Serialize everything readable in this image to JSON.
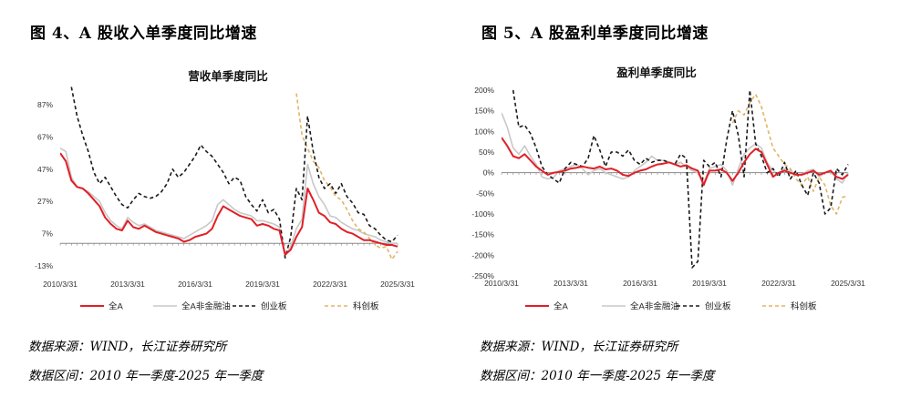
{
  "left_panel": {
    "figure_title": "图 4、A 股收入单季度同比增速",
    "source_note": "数据来源：WIND，长江证券研究所",
    "range_note": "数据区间：2010 年一季度-2025 年一季度"
  },
  "right_panel": {
    "figure_title": "图 5、A 股盈利单季度同比增速",
    "source_note": "数据来源：WIND，长江证券研究所",
    "range_note": "数据区间：2010 年一季度-2025 年一季度"
  },
  "chart_data": [
    {
      "type": "line",
      "title": "营收单季度同比",
      "x_start": "2010/3/31",
      "x_end": "2025/3/31",
      "frequency": "quarterly",
      "x_tick_labels": [
        "2010/3/31",
        "2013/3/31",
        "2016/3/31",
        "2019/3/31",
        "2022/3/31",
        "2025/3/31"
      ],
      "y_tick_labels": [
        "-13%",
        "7%",
        "27%",
        "47%",
        "67%",
        "87%"
      ],
      "y_ticks": [
        -13,
        7,
        27,
        47,
        67,
        87
      ],
      "ylim": [
        -13,
        100
      ],
      "grid": false,
      "legend_position": "bottom",
      "series": [
        {
          "name": "全A",
          "color": "#e11f26",
          "dash": "solid",
          "x": [
            2010.0,
            2010.25,
            2010.5,
            2010.75,
            2011.0,
            2011.25,
            2011.5,
            2011.75,
            2012.0,
            2012.25,
            2012.5,
            2012.75,
            2013.0,
            2013.25,
            2013.5,
            2013.75,
            2014.0,
            2014.25,
            2014.5,
            2014.75,
            2015.0,
            2015.25,
            2015.5,
            2015.75,
            2016.0,
            2016.25,
            2016.5,
            2016.75,
            2017.0,
            2017.25,
            2017.5,
            2017.75,
            2018.0,
            2018.25,
            2018.5,
            2018.75,
            2019.0,
            2019.25,
            2019.5,
            2019.75,
            2020.0,
            2020.25,
            2020.5,
            2020.75,
            2021.0,
            2021.25,
            2021.5,
            2021.75,
            2022.0,
            2022.25,
            2022.5,
            2022.75,
            2023.0,
            2023.25,
            2023.5,
            2023.75,
            2024.0,
            2024.25,
            2024.5,
            2024.75,
            2025.0
          ],
          "y": [
            57,
            52,
            40,
            36,
            35,
            32,
            28,
            24,
            17,
            13,
            10,
            9,
            15,
            11,
            10,
            12,
            10,
            8,
            7,
            6,
            5,
            4,
            2,
            3,
            5,
            6,
            7,
            10,
            18,
            24,
            22,
            20,
            18,
            17,
            16,
            12,
            13,
            12,
            10,
            9,
            -6,
            -3,
            5,
            11,
            35,
            28,
            20,
            18,
            14,
            13,
            10,
            8,
            7,
            5,
            3,
            3,
            2,
            1,
            0,
            0,
            -1
          ]
        },
        {
          "name": "全A非金融油",
          "color": "#c8c8c8",
          "dash": "solid",
          "x": [
            2010.0,
            2010.25,
            2010.5,
            2010.75,
            2011.0,
            2011.25,
            2011.5,
            2011.75,
            2012.0,
            2012.25,
            2012.5,
            2012.75,
            2013.0,
            2013.25,
            2013.5,
            2013.75,
            2014.0,
            2014.25,
            2014.5,
            2014.75,
            2015.0,
            2015.25,
            2015.5,
            2015.75,
            2016.0,
            2016.25,
            2016.5,
            2016.75,
            2017.0,
            2017.25,
            2017.5,
            2017.75,
            2018.0,
            2018.25,
            2018.5,
            2018.75,
            2019.0,
            2019.25,
            2019.5,
            2019.75,
            2020.0,
            2020.25,
            2020.5,
            2020.75,
            2021.0,
            2021.25,
            2021.5,
            2021.75,
            2022.0,
            2022.25,
            2022.5,
            2022.75,
            2023.0,
            2023.25,
            2023.5,
            2023.75,
            2024.0,
            2024.25,
            2024.5,
            2024.75,
            2025.0
          ],
          "y": [
            60,
            58,
            42,
            36,
            35,
            33,
            30,
            27,
            20,
            15,
            12,
            10,
            17,
            14,
            12,
            13,
            11,
            9,
            8,
            7,
            6,
            5,
            4,
            6,
            8,
            10,
            12,
            15,
            25,
            28,
            25,
            22,
            20,
            19,
            18,
            15,
            15,
            14,
            13,
            11,
            -7,
            -1,
            10,
            16,
            50,
            38,
            30,
            25,
            18,
            17,
            14,
            12,
            10,
            9,
            7,
            6,
            5,
            3,
            2,
            1,
            1
          ]
        },
        {
          "name": "创业板",
          "color": "#1a1a1a",
          "dash": "dashed",
          "x": [
            2010.5,
            2010.75,
            2011.0,
            2011.25,
            2011.5,
            2011.75,
            2012.0,
            2012.25,
            2012.5,
            2012.75,
            2013.0,
            2013.25,
            2013.5,
            2013.75,
            2014.0,
            2014.25,
            2014.5,
            2014.75,
            2015.0,
            2015.25,
            2015.5,
            2015.75,
            2016.0,
            2016.25,
            2016.5,
            2016.75,
            2017.0,
            2017.25,
            2017.5,
            2017.75,
            2018.0,
            2018.25,
            2018.5,
            2018.75,
            2019.0,
            2019.25,
            2019.5,
            2019.75,
            2020.0,
            2020.25,
            2020.5,
            2020.75,
            2021.0,
            2021.25,
            2021.5,
            2021.75,
            2022.0,
            2022.25,
            2022.5,
            2022.75,
            2023.0,
            2023.25,
            2023.5,
            2023.75,
            2024.0,
            2024.25,
            2024.5,
            2024.75,
            2025.0
          ],
          "y": [
            98,
            80,
            68,
            58,
            45,
            38,
            42,
            36,
            30,
            25,
            23,
            28,
            32,
            30,
            29,
            30,
            33,
            38,
            47,
            42,
            45,
            50,
            55,
            62,
            58,
            55,
            50,
            45,
            38,
            42,
            40,
            30,
            25,
            21,
            28,
            20,
            22,
            16,
            -8,
            5,
            35,
            28,
            80,
            58,
            42,
            35,
            38,
            32,
            38,
            30,
            26,
            20,
            19,
            12,
            10,
            6,
            3,
            2,
            6
          ]
        },
        {
          "name": "科创板",
          "color": "#e2b466",
          "dash": "dashed",
          "x": [
            2020.5,
            2020.75,
            2021.0,
            2021.25,
            2021.5,
            2021.75,
            2022.0,
            2022.25,
            2022.5,
            2022.75,
            2023.0,
            2023.25,
            2023.5,
            2023.75,
            2024.0,
            2024.25,
            2024.5,
            2024.75,
            2025.0
          ],
          "y": [
            94,
            68,
            60,
            52,
            48,
            40,
            36,
            30,
            28,
            22,
            15,
            10,
            8,
            4,
            0,
            -2,
            -1,
            -9,
            -4
          ]
        }
      ]
    },
    {
      "type": "line",
      "title": "盈利单季度同比",
      "x_start": "2010/3/31",
      "x_end": "2025/3/31",
      "frequency": "quarterly",
      "x_tick_labels": [
        "2010/3/31",
        "2013/3/31",
        "2016/3/31",
        "2019/3/31",
        "2022/3/31",
        "2025/3/31"
      ],
      "y_tick_labels": [
        "-250%",
        "-200%",
        "-150%",
        "-100%",
        "-50%",
        "0%",
        "50%",
        "100%",
        "150%",
        "200%"
      ],
      "y_ticks": [
        -250,
        -200,
        -150,
        -100,
        -50,
        0,
        50,
        100,
        150,
        200
      ],
      "ylim": [
        -250,
        200
      ],
      "grid": false,
      "legend_position": "bottom",
      "series": [
        {
          "name": "全A",
          "color": "#e11f26",
          "dash": "solid",
          "x": [
            2010.0,
            2010.25,
            2010.5,
            2010.75,
            2011.0,
            2011.25,
            2011.5,
            2011.75,
            2012.0,
            2012.25,
            2012.5,
            2012.75,
            2013.0,
            2013.25,
            2013.5,
            2013.75,
            2014.0,
            2014.25,
            2014.5,
            2014.75,
            2015.0,
            2015.25,
            2015.5,
            2015.75,
            2016.0,
            2016.25,
            2016.5,
            2016.75,
            2017.0,
            2017.25,
            2017.5,
            2017.75,
            2018.0,
            2018.25,
            2018.5,
            2018.75,
            2019.0,
            2019.25,
            2019.5,
            2019.75,
            2020.0,
            2020.25,
            2020.5,
            2020.75,
            2021.0,
            2021.25,
            2021.5,
            2021.75,
            2022.0,
            2022.25,
            2022.5,
            2022.75,
            2023.0,
            2023.25,
            2023.5,
            2023.75,
            2024.0,
            2024.25,
            2024.5,
            2024.75,
            2025.0
          ],
          "y": [
            85,
            65,
            40,
            35,
            45,
            30,
            15,
            5,
            -5,
            0,
            2,
            5,
            10,
            12,
            15,
            12,
            10,
            15,
            8,
            10,
            5,
            -5,
            -8,
            0,
            5,
            8,
            15,
            20,
            22,
            25,
            20,
            15,
            18,
            10,
            5,
            -30,
            5,
            5,
            8,
            0,
            -20,
            0,
            25,
            45,
            58,
            50,
            20,
            -10,
            0,
            5,
            0,
            -5,
            -5,
            0,
            5,
            -5,
            0,
            5,
            -10,
            -15,
            -5
          ]
        },
        {
          "name": "全A非金融油",
          "color": "#c8c8c8",
          "dash": "solid",
          "x": [
            2010.0,
            2010.25,
            2010.5,
            2010.75,
            2011.0,
            2011.25,
            2011.5,
            2011.75,
            2012.0,
            2012.25,
            2012.5,
            2012.75,
            2013.0,
            2013.25,
            2013.5,
            2013.75,
            2014.0,
            2014.25,
            2014.5,
            2014.75,
            2015.0,
            2015.25,
            2015.5,
            2015.75,
            2016.0,
            2016.25,
            2016.5,
            2016.75,
            2017.0,
            2017.25,
            2017.5,
            2017.75,
            2018.0,
            2018.25,
            2018.5,
            2018.75,
            2019.0,
            2019.25,
            2019.5,
            2019.75,
            2020.0,
            2020.25,
            2020.5,
            2020.75,
            2021.0,
            2021.25,
            2021.5,
            2021.75,
            2022.0,
            2022.25,
            2022.5,
            2022.75,
            2023.0,
            2023.25,
            2023.5,
            2023.75,
            2024.0,
            2024.25,
            2024.5,
            2024.75,
            2025.0
          ],
          "y": [
            145,
            110,
            60,
            45,
            65,
            40,
            20,
            -10,
            -15,
            -12,
            5,
            10,
            15,
            20,
            10,
            -5,
            5,
            10,
            0,
            -5,
            -10,
            -15,
            -10,
            5,
            15,
            25,
            40,
            30,
            30,
            25,
            20,
            25,
            15,
            5,
            0,
            -25,
            10,
            15,
            20,
            5,
            -30,
            10,
            45,
            60,
            70,
            60,
            25,
            5,
            -5,
            10,
            5,
            -5,
            -5,
            5,
            8,
            -10,
            0,
            5,
            -15,
            -25,
            0
          ]
        },
        {
          "name": "创业板",
          "color": "#1a1a1a",
          "dash": "dashed",
          "x": [
            2010.5,
            2010.75,
            2011.0,
            2011.25,
            2011.5,
            2011.75,
            2012.0,
            2012.25,
            2012.5,
            2012.75,
            2013.0,
            2013.25,
            2013.5,
            2013.75,
            2014.0,
            2014.25,
            2014.5,
            2014.75,
            2015.0,
            2015.25,
            2015.5,
            2015.75,
            2016.0,
            2016.25,
            2016.5,
            2016.75,
            2017.0,
            2017.25,
            2017.5,
            2017.75,
            2018.0,
            2018.25,
            2018.5,
            2018.75,
            2019.0,
            2019.25,
            2019.5,
            2019.75,
            2020.0,
            2020.25,
            2020.5,
            2020.75,
            2021.0,
            2021.25,
            2021.5,
            2021.75,
            2022.0,
            2022.25,
            2022.5,
            2022.75,
            2023.0,
            2023.25,
            2023.5,
            2023.75,
            2024.0,
            2024.25,
            2024.5,
            2024.75,
            2025.0
          ],
          "y": [
            200,
            110,
            115,
            95,
            60,
            15,
            -5,
            -15,
            -25,
            10,
            25,
            20,
            15,
            35,
            90,
            55,
            15,
            50,
            50,
            40,
            55,
            30,
            20,
            35,
            25,
            30,
            30,
            25,
            20,
            45,
            35,
            -230,
            -215,
            30,
            15,
            25,
            -10,
            80,
            150,
            90,
            -10,
            200,
            70,
            40,
            0,
            10,
            -10,
            25,
            -15,
            5,
            -30,
            -55,
            0,
            -25,
            -100,
            -85,
            10,
            -5,
            20
          ]
        },
        {
          "name": "科创板",
          "color": "#e2b466",
          "dash": "dashed",
          "x": [
            2020.0,
            2020.25,
            2020.5,
            2020.75,
            2021.0,
            2021.25,
            2021.5,
            2021.75,
            2022.0,
            2022.25,
            2022.5,
            2022.75,
            2023.0,
            2023.25,
            2023.5,
            2023.75,
            2024.0,
            2024.25,
            2024.5,
            2024.75,
            2025.0
          ],
          "y": [
            120,
            150,
            140,
            170,
            190,
            160,
            110,
            60,
            40,
            20,
            10,
            -15,
            -30,
            -10,
            -45,
            -10,
            -30,
            -80,
            -100,
            -60,
            -55
          ]
        }
      ]
    }
  ]
}
